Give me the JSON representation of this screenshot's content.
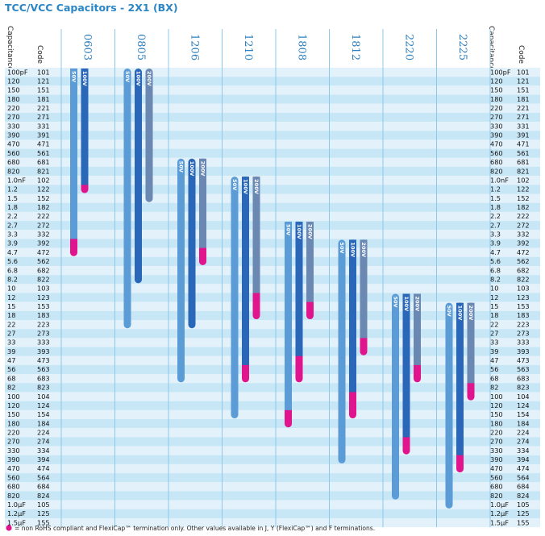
{
  "chart_data": {
    "type": "range-bar",
    "title": "TCC/VCC Capacitors - 2X1 (BX)",
    "column_headers": {
      "capacitance": "Capacitance",
      "code": "Code"
    },
    "rows": [
      {
        "cap": "100pF",
        "code": "101"
      },
      {
        "cap": "120",
        "code": "121"
      },
      {
        "cap": "150",
        "code": "151"
      },
      {
        "cap": "180",
        "code": "181"
      },
      {
        "cap": "220",
        "code": "221"
      },
      {
        "cap": "270",
        "code": "271"
      },
      {
        "cap": "330",
        "code": "331"
      },
      {
        "cap": "390",
        "code": "391"
      },
      {
        "cap": "470",
        "code": "471"
      },
      {
        "cap": "560",
        "code": "561"
      },
      {
        "cap": "680",
        "code": "681"
      },
      {
        "cap": "820",
        "code": "821"
      },
      {
        "cap": "1.0nF",
        "code": "102"
      },
      {
        "cap": "1.2",
        "code": "122"
      },
      {
        "cap": "1.5",
        "code": "152"
      },
      {
        "cap": "1.8",
        "code": "182"
      },
      {
        "cap": "2.2",
        "code": "222"
      },
      {
        "cap": "2.7",
        "code": "272"
      },
      {
        "cap": "3.3",
        "code": "332"
      },
      {
        "cap": "3.9",
        "code": "392"
      },
      {
        "cap": "4.7",
        "code": "472"
      },
      {
        "cap": "5.6",
        "code": "562"
      },
      {
        "cap": "6.8",
        "code": "682"
      },
      {
        "cap": "8.2",
        "code": "822"
      },
      {
        "cap": "10",
        "code": "103"
      },
      {
        "cap": "12",
        "code": "123"
      },
      {
        "cap": "15",
        "code": "153"
      },
      {
        "cap": "18",
        "code": "183"
      },
      {
        "cap": "22",
        "code": "223"
      },
      {
        "cap": "27",
        "code": "273"
      },
      {
        "cap": "33",
        "code": "333"
      },
      {
        "cap": "39",
        "code": "393"
      },
      {
        "cap": "47",
        "code": "473"
      },
      {
        "cap": "56",
        "code": "563"
      },
      {
        "cap": "68",
        "code": "683"
      },
      {
        "cap": "82",
        "code": "823"
      },
      {
        "cap": "100",
        "code": "104"
      },
      {
        "cap": "120",
        "code": "124"
      },
      {
        "cap": "150",
        "code": "154"
      },
      {
        "cap": "180",
        "code": "184"
      },
      {
        "cap": "220",
        "code": "224"
      },
      {
        "cap": "270",
        "code": "274"
      },
      {
        "cap": "330",
        "code": "334"
      },
      {
        "cap": "390",
        "code": "394"
      },
      {
        "cap": "470",
        "code": "474"
      },
      {
        "cap": "560",
        "code": "564"
      },
      {
        "cap": "680",
        "code": "684"
      },
      {
        "cap": "820",
        "code": "824"
      },
      {
        "cap": "1.0µF",
        "code": "105"
      },
      {
        "cap": "1.2µF",
        "code": "125"
      },
      {
        "cap": "1.5µF",
        "code": "155"
      }
    ],
    "cases": [
      {
        "name": "0603",
        "bars": [
          {
            "voltage": "50V",
            "from": "101",
            "to": "472",
            "magenta_from": "392"
          },
          {
            "voltage": "100V",
            "from": "101",
            "to": "122",
            "magenta_from": "122"
          }
        ]
      },
      {
        "name": "0805",
        "bars": [
          {
            "voltage": "50V",
            "from": "101",
            "to": "223"
          },
          {
            "voltage": "100V",
            "from": "101",
            "to": "822"
          },
          {
            "voltage": "200V",
            "from": "101",
            "to": "152"
          }
        ]
      },
      {
        "name": "1206",
        "bars": [
          {
            "voltage": "50V",
            "from": "681",
            "to": "683"
          },
          {
            "voltage": "100V",
            "from": "681",
            "to": "223"
          },
          {
            "voltage": "200V",
            "from": "681",
            "to": "562",
            "magenta_from": "472"
          }
        ]
      },
      {
        "name": "1210",
        "bars": [
          {
            "voltage": "50V",
            "from": "102",
            "to": "154"
          },
          {
            "voltage": "100V",
            "from": "102",
            "to": "683",
            "magenta_from": "563"
          },
          {
            "voltage": "200V",
            "from": "102",
            "to": "183",
            "magenta_from": "123"
          }
        ]
      },
      {
        "name": "1808",
        "bars": [
          {
            "voltage": "50V",
            "from": "272",
            "to": "184",
            "magenta_from": "154"
          },
          {
            "voltage": "100V",
            "from": "272",
            "to": "683",
            "magenta_from": "473"
          },
          {
            "voltage": "200V",
            "from": "272",
            "to": "183",
            "magenta_from": "153"
          }
        ]
      },
      {
        "name": "1812",
        "bars": [
          {
            "voltage": "50V",
            "from": "392",
            "to": "394"
          },
          {
            "voltage": "100V",
            "from": "392",
            "to": "154",
            "magenta_from": "104"
          },
          {
            "voltage": "200V",
            "from": "392",
            "to": "393",
            "magenta_from": "333"
          }
        ]
      },
      {
        "name": "2220",
        "bars": [
          {
            "voltage": "50V",
            "from": "123",
            "to": "824"
          },
          {
            "voltage": "100V",
            "from": "123",
            "to": "334",
            "magenta_from": "274"
          },
          {
            "voltage": "200V",
            "from": "123",
            "to": "683",
            "magenta_from": "563"
          }
        ]
      },
      {
        "name": "2225",
        "bars": [
          {
            "voltage": "50V",
            "from": "153",
            "to": "105"
          },
          {
            "voltage": "100V",
            "from": "153",
            "to": "474",
            "magenta_from": "394"
          },
          {
            "voltage": "200V",
            "from": "153",
            "to": "104",
            "magenta_from": "823"
          }
        ]
      }
    ],
    "footnote": "= non RoHS compliant and FlexiCap™ termination only. Other values available in J, Y (FlexiCap™) and F terminations.",
    "colors": {
      "row_light": "#e2f1fa",
      "row_band": "#c7e6f6",
      "bar_50v": "#5b9bd6",
      "bar_100v": "#2a67b8",
      "bar_200v": "#6b88b3",
      "magenta": "#e0148c",
      "title": "#2b86c5",
      "case_label": "#2e7fbd",
      "divider": "#8dc8ea"
    }
  }
}
